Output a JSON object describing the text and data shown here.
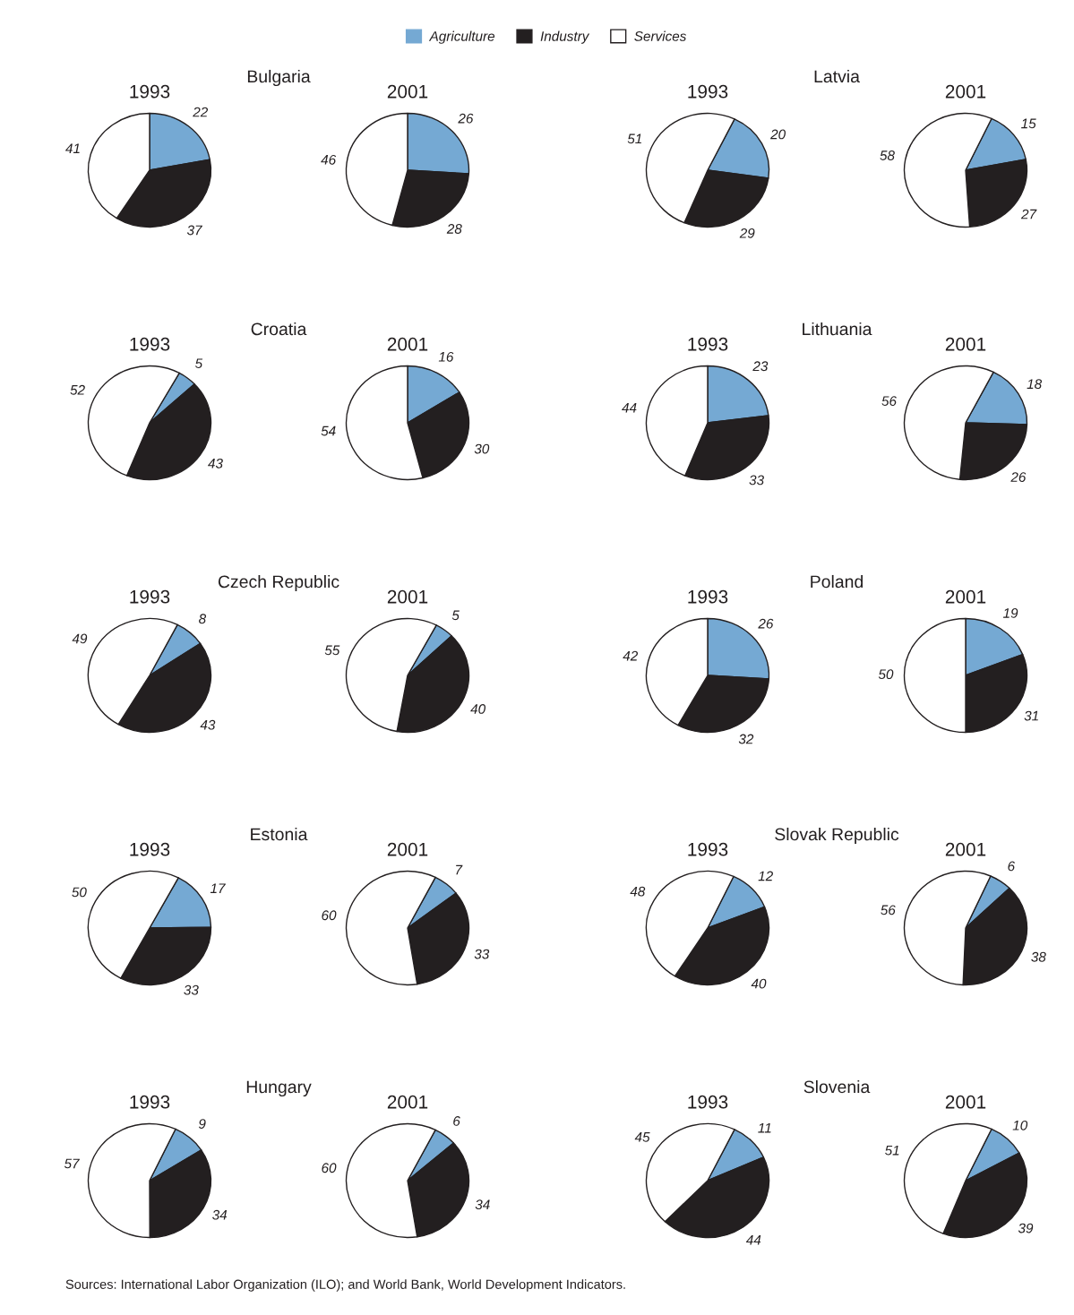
{
  "chart_data": [
    {
      "type": "pie",
      "title": "Bulgaria",
      "subtitle": "1993",
      "categories": [
        "Agriculture",
        "Industry",
        "Services"
      ],
      "values": [
        22,
        37,
        41
      ],
      "colors": [
        "#75a9d3",
        "#231f20",
        "#ffffff"
      ],
      "data_labels": true,
      "legend": "top"
    },
    {
      "type": "pie",
      "subtitle": "2001",
      "values": [
        26,
        28,
        46
      ],
      "colors": [
        "#75a9d3",
        "#231f20",
        "#ffffff"
      ],
      "data_labels": true
    },
    {
      "type": "pie",
      "title": "Latvia",
      "subtitle": "1993",
      "values": [
        20,
        29,
        51
      ],
      "colors": [
        "#75a9d3",
        "#231f20",
        "#ffffff"
      ],
      "data_labels": true
    },
    {
      "type": "pie",
      "subtitle": "2001",
      "values": [
        15,
        27,
        58
      ],
      "colors": [
        "#75a9d3",
        "#231f20",
        "#ffffff"
      ],
      "data_labels": true
    },
    {
      "type": "pie",
      "title": "Croatia",
      "subtitle": "1993",
      "values": [
        5,
        43,
        52
      ],
      "colors": [
        "#75a9d3",
        "#231f20",
        "#ffffff"
      ],
      "data_labels": true
    },
    {
      "type": "pie",
      "subtitle": "2001",
      "values": [
        16,
        30,
        54
      ],
      "colors": [
        "#75a9d3",
        "#231f20",
        "#ffffff"
      ],
      "data_labels": true
    },
    {
      "type": "pie",
      "title": "Lithuania",
      "subtitle": "1993",
      "values": [
        23,
        33,
        44
      ],
      "colors": [
        "#75a9d3",
        "#231f20",
        "#ffffff"
      ],
      "data_labels": true
    },
    {
      "type": "pie",
      "subtitle": "2001",
      "values": [
        18,
        26,
        56
      ],
      "colors": [
        "#75a9d3",
        "#231f20",
        "#ffffff"
      ],
      "data_labels": true
    },
    {
      "type": "pie",
      "title": "Czech Republic",
      "subtitle": "1993",
      "values": [
        8,
        43,
        49
      ],
      "colors": [
        "#75a9d3",
        "#231f20",
        "#ffffff"
      ],
      "data_labels": true
    },
    {
      "type": "pie",
      "subtitle": "2001",
      "values": [
        5,
        40,
        55
      ],
      "colors": [
        "#75a9d3",
        "#231f20",
        "#ffffff"
      ],
      "data_labels": true
    },
    {
      "type": "pie",
      "title": "Poland",
      "subtitle": "1993",
      "values": [
        26,
        32,
        42
      ],
      "colors": [
        "#75a9d3",
        "#231f20",
        "#ffffff"
      ],
      "data_labels": true
    },
    {
      "type": "pie",
      "subtitle": "2001",
      "values": [
        19,
        31,
        50
      ],
      "colors": [
        "#75a9d3",
        "#231f20",
        "#ffffff"
      ],
      "data_labels": true
    },
    {
      "type": "pie",
      "title": "Estonia",
      "subtitle": "1993",
      "values": [
        17,
        33,
        50
      ],
      "colors": [
        "#75a9d3",
        "#231f20",
        "#ffffff"
      ],
      "data_labels": true
    },
    {
      "type": "pie",
      "subtitle": "2001",
      "values": [
        7,
        33,
        60
      ],
      "colors": [
        "#75a9d3",
        "#231f20",
        "#ffffff"
      ],
      "data_labels": true
    },
    {
      "type": "pie",
      "title": "Slovak Republic",
      "subtitle": "1993",
      "values": [
        12,
        40,
        48
      ],
      "colors": [
        "#75a9d3",
        "#231f20",
        "#ffffff"
      ],
      "data_labels": true
    },
    {
      "type": "pie",
      "subtitle": "2001",
      "values": [
        6,
        38,
        56
      ],
      "colors": [
        "#75a9d3",
        "#231f20",
        "#ffffff"
      ],
      "data_labels": true
    },
    {
      "type": "pie",
      "title": "Hungary",
      "subtitle": "1993",
      "values": [
        9,
        34,
        57
      ],
      "colors": [
        "#75a9d3",
        "#231f20",
        "#ffffff"
      ],
      "data_labels": true
    },
    {
      "type": "pie",
      "subtitle": "2001",
      "values": [
        6,
        34,
        60
      ],
      "colors": [
        "#75a9d3",
        "#231f20",
        "#ffffff"
      ],
      "data_labels": true
    },
    {
      "type": "pie",
      "title": "Slovenia",
      "subtitle": "1993",
      "values": [
        11,
        44,
        45
      ],
      "colors": [
        "#75a9d3",
        "#231f20",
        "#ffffff"
      ],
      "data_labels": true
    },
    {
      "type": "pie",
      "subtitle": "2001",
      "values": [
        10,
        39,
        51
      ],
      "colors": [
        "#75a9d3",
        "#231f20",
        "#ffffff"
      ],
      "data_labels": true,
      "annotations": [
        "Sources: International Labor Organization (ILO); and World Bank, World Development Indicators."
      ]
    }
  ]
}
